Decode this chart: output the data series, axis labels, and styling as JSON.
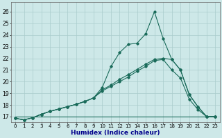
{
  "xlabel": "Humidex (Indice chaleur)",
  "xlim": [
    -0.5,
    23.5
  ],
  "ylim": [
    16.5,
    26.8
  ],
  "yticks": [
    17,
    18,
    19,
    20,
    21,
    22,
    23,
    24,
    25,
    26
  ],
  "xticks": [
    0,
    1,
    2,
    3,
    4,
    5,
    6,
    7,
    8,
    9,
    10,
    11,
    12,
    13,
    14,
    15,
    16,
    17,
    18,
    19,
    20,
    21,
    22,
    23
  ],
  "bg_color": "#cde8e8",
  "grid_color": "#aacccc",
  "line_color": "#1a6b5a",
  "line1_x": [
    0,
    1,
    2,
    3,
    4,
    5,
    6,
    7,
    8,
    9,
    10,
    11,
    12,
    13,
    14,
    15,
    16,
    17,
    18,
    19,
    20,
    21,
    22,
    23
  ],
  "line1_y": [
    16.85,
    16.72,
    16.9,
    17.2,
    17.45,
    17.65,
    17.85,
    18.05,
    18.3,
    18.6,
    19.5,
    21.3,
    22.5,
    23.2,
    23.3,
    24.1,
    26.0,
    23.7,
    21.9,
    21.0,
    18.9,
    17.85,
    17.0,
    17.0
  ],
  "line2_x": [
    0,
    1,
    2,
    3,
    4,
    5,
    6,
    7,
    8,
    9,
    10,
    11,
    12,
    13,
    14,
    15,
    16,
    17,
    18,
    19,
    20,
    21,
    22,
    23
  ],
  "line2_y": [
    16.85,
    16.72,
    16.9,
    17.2,
    17.45,
    17.65,
    17.85,
    18.05,
    18.3,
    18.6,
    19.3,
    19.7,
    20.2,
    20.6,
    21.05,
    21.5,
    21.9,
    22.0,
    21.9,
    21.0,
    18.9,
    17.85,
    17.0,
    17.0
  ],
  "line3_x": [
    0,
    23
  ],
  "line3_y": [
    17.0,
    17.0
  ],
  "line4_x": [
    0,
    1,
    2,
    3,
    4,
    5,
    6,
    7,
    8,
    9,
    10,
    11,
    12,
    13,
    14,
    15,
    16,
    17,
    18,
    19,
    20,
    21,
    22,
    23
  ],
  "line4_y": [
    16.85,
    16.72,
    16.9,
    17.2,
    17.45,
    17.65,
    17.85,
    18.05,
    18.3,
    18.6,
    19.2,
    19.6,
    20.0,
    20.4,
    20.9,
    21.3,
    21.8,
    21.9,
    21.0,
    20.3,
    18.5,
    17.6,
    17.0,
    17.0
  ]
}
